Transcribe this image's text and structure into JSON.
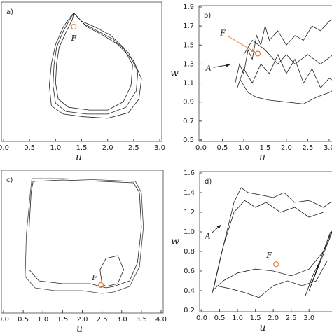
{
  "chart_data": [
    {
      "type": "line",
      "panel_label": "a)",
      "xlabel": "u",
      "xlim": [
        0,
        3.0
      ],
      "ylim": [
        0,
        1
      ],
      "xticks": [
        {
          "value": 0,
          "label": "0.0"
        },
        0.5,
        {
          "value": 1,
          "label": "1.0"
        },
        1.5,
        {
          "value": 2,
          "label": "2.0"
        },
        2.5,
        {
          "value": 3,
          "label": "3.0"
        }
      ],
      "series": [
        {
          "color": "#222222",
          "x": [
            1.35,
            1.55,
            1.8,
            2.1,
            2.4,
            2.58,
            2.55,
            2.35,
            2.0,
            1.6,
            1.2,
            1.0,
            0.95,
            0.97,
            1.02,
            1.15,
            1.3,
            1.35
          ],
          "values": [
            0.93,
            0.85,
            0.8,
            0.74,
            0.64,
            0.5,
            0.36,
            0.24,
            0.19,
            0.19,
            0.21,
            0.27,
            0.4,
            0.55,
            0.68,
            0.8,
            0.9,
            0.93
          ]
        },
        {
          "color": "#222222",
          "x": [
            1.35,
            1.6,
            1.9,
            2.2,
            2.5,
            2.65,
            2.6,
            2.4,
            2.0,
            1.55,
            1.15,
            0.92,
            0.88,
            0.92,
            1.0,
            1.15,
            1.3,
            1.35
          ],
          "values": [
            0.93,
            0.83,
            0.77,
            0.7,
            0.58,
            0.45,
            0.3,
            0.2,
            0.16,
            0.17,
            0.19,
            0.25,
            0.4,
            0.56,
            0.7,
            0.83,
            0.91,
            0.93
          ]
        },
        {
          "color": "#222222",
          "x": [
            1.35,
            1.5,
            1.75,
            2.05,
            2.3,
            2.48,
            2.45,
            2.3,
            2.0,
            1.65,
            1.25,
            1.05,
            1.0,
            1.02,
            1.07,
            1.2,
            1.32,
            1.35
          ],
          "values": [
            0.93,
            0.87,
            0.83,
            0.77,
            0.68,
            0.55,
            0.4,
            0.28,
            0.22,
            0.22,
            0.24,
            0.3,
            0.42,
            0.56,
            0.68,
            0.79,
            0.88,
            0.93
          ]
        }
      ],
      "fixed_point": {
        "label": "F",
        "x": 1.35,
        "y": 0.83,
        "color": "#e07b39"
      }
    },
    {
      "type": "line",
      "panel_label": "b)",
      "xlabel": "u",
      "ylabel": "w",
      "xlim": [
        0,
        3.1
      ],
      "ylim": [
        0.5,
        1.9
      ],
      "xticks": [
        {
          "value": 0,
          "label": "0.0"
        },
        0.5,
        {
          "value": 1,
          "label": "1.0"
        },
        1.5,
        {
          "value": 2,
          "label": "2.0"
        },
        2.5,
        {
          "value": 3,
          "label": "3.0"
        }
      ],
      "yticks": [
        0.5,
        0.7,
        0.9,
        1.1,
        1.3,
        1.5,
        1.7,
        1.9
      ],
      "series": [
        {
          "color": "#222222",
          "x": [
            0.8,
            0.9,
            1.0,
            1.1,
            1.2,
            1.3,
            1.4,
            1.5,
            1.6,
            1.8,
            2.0,
            2.2,
            2.4,
            2.6,
            2.8,
            3.0,
            3.2
          ],
          "values": [
            1.1,
            1.3,
            1.2,
            1.45,
            1.35,
            1.6,
            1.5,
            1.7,
            1.55,
            1.65,
            1.5,
            1.6,
            1.55,
            1.7,
            1.65,
            1.75,
            1.8
          ]
        },
        {
          "color": "#222222",
          "x": [
            0.85,
            1.0,
            1.2,
            1.4,
            1.6,
            1.8,
            2.0,
            2.2,
            2.4,
            2.6,
            2.8,
            3.0,
            3.2
          ],
          "values": [
            1.05,
            1.25,
            1.1,
            1.3,
            1.2,
            1.4,
            1.2,
            1.35,
            1.1,
            1.25,
            1.05,
            1.15,
            1.1
          ]
        },
        {
          "color": "#222222",
          "x": [
            0.9,
            1.1,
            1.3,
            1.6,
            2.0,
            2.4,
            2.7,
            3.0,
            3.2
          ],
          "values": [
            1.15,
            1.0,
            0.95,
            0.92,
            0.9,
            0.88,
            0.95,
            1.0,
            1.05
          ]
        },
        {
          "color": "#222222",
          "x": [
            1.0,
            1.2,
            1.5,
            1.8,
            2.0,
            2.2,
            2.5,
            2.8,
            3.1
          ],
          "values": [
            1.4,
            1.55,
            1.45,
            1.3,
            1.4,
            1.3,
            1.4,
            1.3,
            1.4
          ]
        }
      ],
      "fixed_point": {
        "x": 1.33,
        "y": 1.41,
        "color": "#e07b39"
      },
      "arrows": [
        {
          "label": "F",
          "x": 1.33,
          "y": 1.41,
          "color": "#e07b39"
        },
        {
          "label": "A",
          "x": 0.75,
          "y": 1.3,
          "color": "#222222"
        }
      ]
    },
    {
      "type": "line",
      "panel_label": "c)",
      "xlabel": "u",
      "xlim": [
        0,
        4.0
      ],
      "ylim": [
        0,
        1
      ],
      "xticks": [
        {
          "value": 0,
          "label": "0.0"
        },
        0.5,
        {
          "value": 1,
          "label": "1.0"
        },
        1.5,
        {
          "value": 2,
          "label": "2.0"
        },
        2.5,
        {
          "value": 3,
          "label": "3.0"
        },
        3.5,
        {
          "value": 4,
          "label": "4.0"
        }
      ],
      "series": [
        {
          "color": "#222222",
          "x": [
            0.75,
            1.5,
            2.5,
            3.3,
            3.45,
            3.5,
            3.4,
            3.2,
            2.8,
            2.6,
            2.2,
            1.5,
            0.9,
            0.65,
            0.65,
            0.7,
            0.75
          ],
          "values": [
            0.93,
            0.94,
            0.93,
            0.92,
            0.85,
            0.6,
            0.35,
            0.22,
            0.18,
            0.17,
            0.2,
            0.2,
            0.22,
            0.3,
            0.6,
            0.85,
            0.93
          ]
        },
        {
          "color": "#444444",
          "x": [
            0.72,
            1.5,
            2.5,
            3.35,
            3.5,
            3.55,
            3.45,
            3.2,
            2.8,
            2.5,
            2.0,
            1.3,
            0.8,
            0.55,
            0.58,
            0.68,
            0.72
          ],
          "values": [
            0.95,
            0.95,
            0.94,
            0.93,
            0.85,
            0.6,
            0.32,
            0.18,
            0.14,
            0.13,
            0.15,
            0.15,
            0.17,
            0.25,
            0.55,
            0.85,
            0.95
          ]
        },
        {
          "color": "#222222",
          "x": [
            2.5,
            2.45,
            2.6,
            2.9,
            3.05,
            2.9,
            2.6,
            2.5
          ],
          "values": [
            0.2,
            0.3,
            0.38,
            0.4,
            0.3,
            0.2,
            0.18,
            0.2
          ]
        }
      ],
      "fixed_point": {
        "label": "F",
        "x": 2.47,
        "y": 0.19,
        "color": "#e07b39"
      }
    },
    {
      "type": "line",
      "panel_label": "d)",
      "xlabel": "u",
      "ylabel": "w",
      "xlim": [
        0,
        3.7
      ],
      "ylim": [
        0.2,
        1.6
      ],
      "xticks": [
        {
          "value": 0,
          "label": "0.0"
        },
        0.5,
        {
          "value": 1,
          "label": "1.0"
        },
        1.5,
        {
          "value": 2,
          "label": "2.0"
        },
        2.5,
        {
          "value": 3,
          "label": "3.0"
        }
      ],
      "yticks": [
        0.2,
        0.4,
        0.6,
        0.8,
        {
          "value": 1,
          "label": "1.0"
        },
        1.2,
        1.4,
        1.6
      ],
      "series": [
        {
          "color": "#222222",
          "x": [
            0.3,
            0.5,
            0.7,
            0.9,
            1.1,
            1.3,
            1.6,
            2.0,
            2.3,
            2.6,
            3.0,
            3.4,
            3.6
          ],
          "values": [
            0.38,
            0.7,
            1.0,
            1.3,
            1.45,
            1.4,
            1.38,
            1.35,
            1.4,
            1.3,
            1.32,
            1.25,
            1.3
          ]
        },
        {
          "color": "#222222",
          "x": [
            0.35,
            0.6,
            0.9,
            1.2,
            1.5,
            1.8,
            2.2,
            2.6,
            3.0,
            3.4
          ],
          "values": [
            0.45,
            0.85,
            1.2,
            1.32,
            1.25,
            1.3,
            1.2,
            1.25,
            1.15,
            1.2
          ]
        },
        {
          "color": "#222222",
          "x": [
            0.3,
            0.6,
            1.0,
            1.5,
            2.0,
            2.5,
            3.0,
            3.4,
            3.6
          ],
          "values": [
            0.4,
            0.5,
            0.58,
            0.62,
            0.6,
            0.55,
            0.62,
            0.8,
            0.95
          ]
        },
        {
          "color": "#222222",
          "x": [
            0.4,
            0.8,
            1.2,
            1.6,
            2.0,
            2.4,
            2.8,
            3.2,
            3.5
          ],
          "values": [
            0.45,
            0.42,
            0.38,
            0.33,
            0.45,
            0.5,
            0.45,
            0.5,
            0.7
          ]
        },
        {
          "color": "#111111",
          "x": [
            2.9,
            3.1,
            3.3,
            3.5,
            3.7,
            3.0,
            3.2,
            3.4,
            3.6
          ],
          "values": [
            0.35,
            0.55,
            0.7,
            0.9,
            1.05,
            0.4,
            0.6,
            0.8,
            1.0
          ]
        }
      ],
      "fixed_point": {
        "label": "F",
        "x": 2.08,
        "y": 0.67,
        "color": "#e07b39"
      },
      "arrows": [
        {
          "label": "A",
          "x": 0.6,
          "y": 1.09,
          "color": "#222222"
        }
      ]
    }
  ]
}
